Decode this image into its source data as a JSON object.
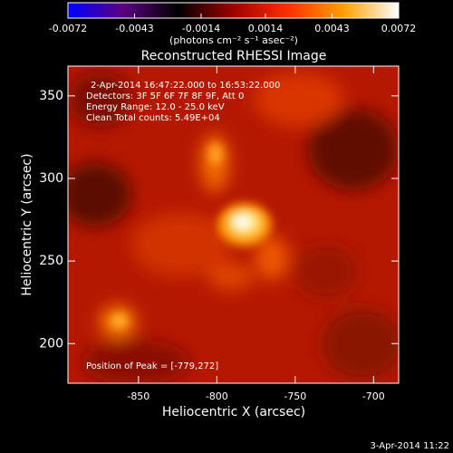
{
  "chart_data": {
    "type": "image",
    "title": "Reconstructed RHESSI Image",
    "xlabel": "Heliocentric X (arcsec)",
    "ylabel": "Heliocentric Y (arcsec)",
    "xlim": [
      -895,
      -684
    ],
    "ylim": [
      176,
      368
    ],
    "xticks": [
      -850,
      -800,
      -750,
      -700
    ],
    "yticks": [
      200,
      250,
      300,
      350
    ],
    "colorbar": {
      "lim": [
        -0.0072,
        0.0072
      ],
      "ticks": [
        -0.0072,
        -0.0043,
        -0.0014,
        0.0014,
        0.0043,
        0.0072
      ],
      "label": "(photons cm⁻² s⁻¹ asec⁻²)",
      "colormap": [
        "#0000ff",
        "#5a0080",
        "#000000",
        "#a00000",
        "#ff3000",
        "#ffa000",
        "#ffffff"
      ]
    },
    "annotations": [
      "2-Apr-2014 16:47:22.000 to 16:53:22.000",
      "Detectors: 3F 5F 6F 7F 8F 9F, Att 0",
      "Energy Range: 12.0 - 25.0 keV",
      "Clean     Total counts: 5.49E+04",
      "Position of Peak = [-779,272]"
    ],
    "footer": "3-Apr-2014 11:22"
  }
}
